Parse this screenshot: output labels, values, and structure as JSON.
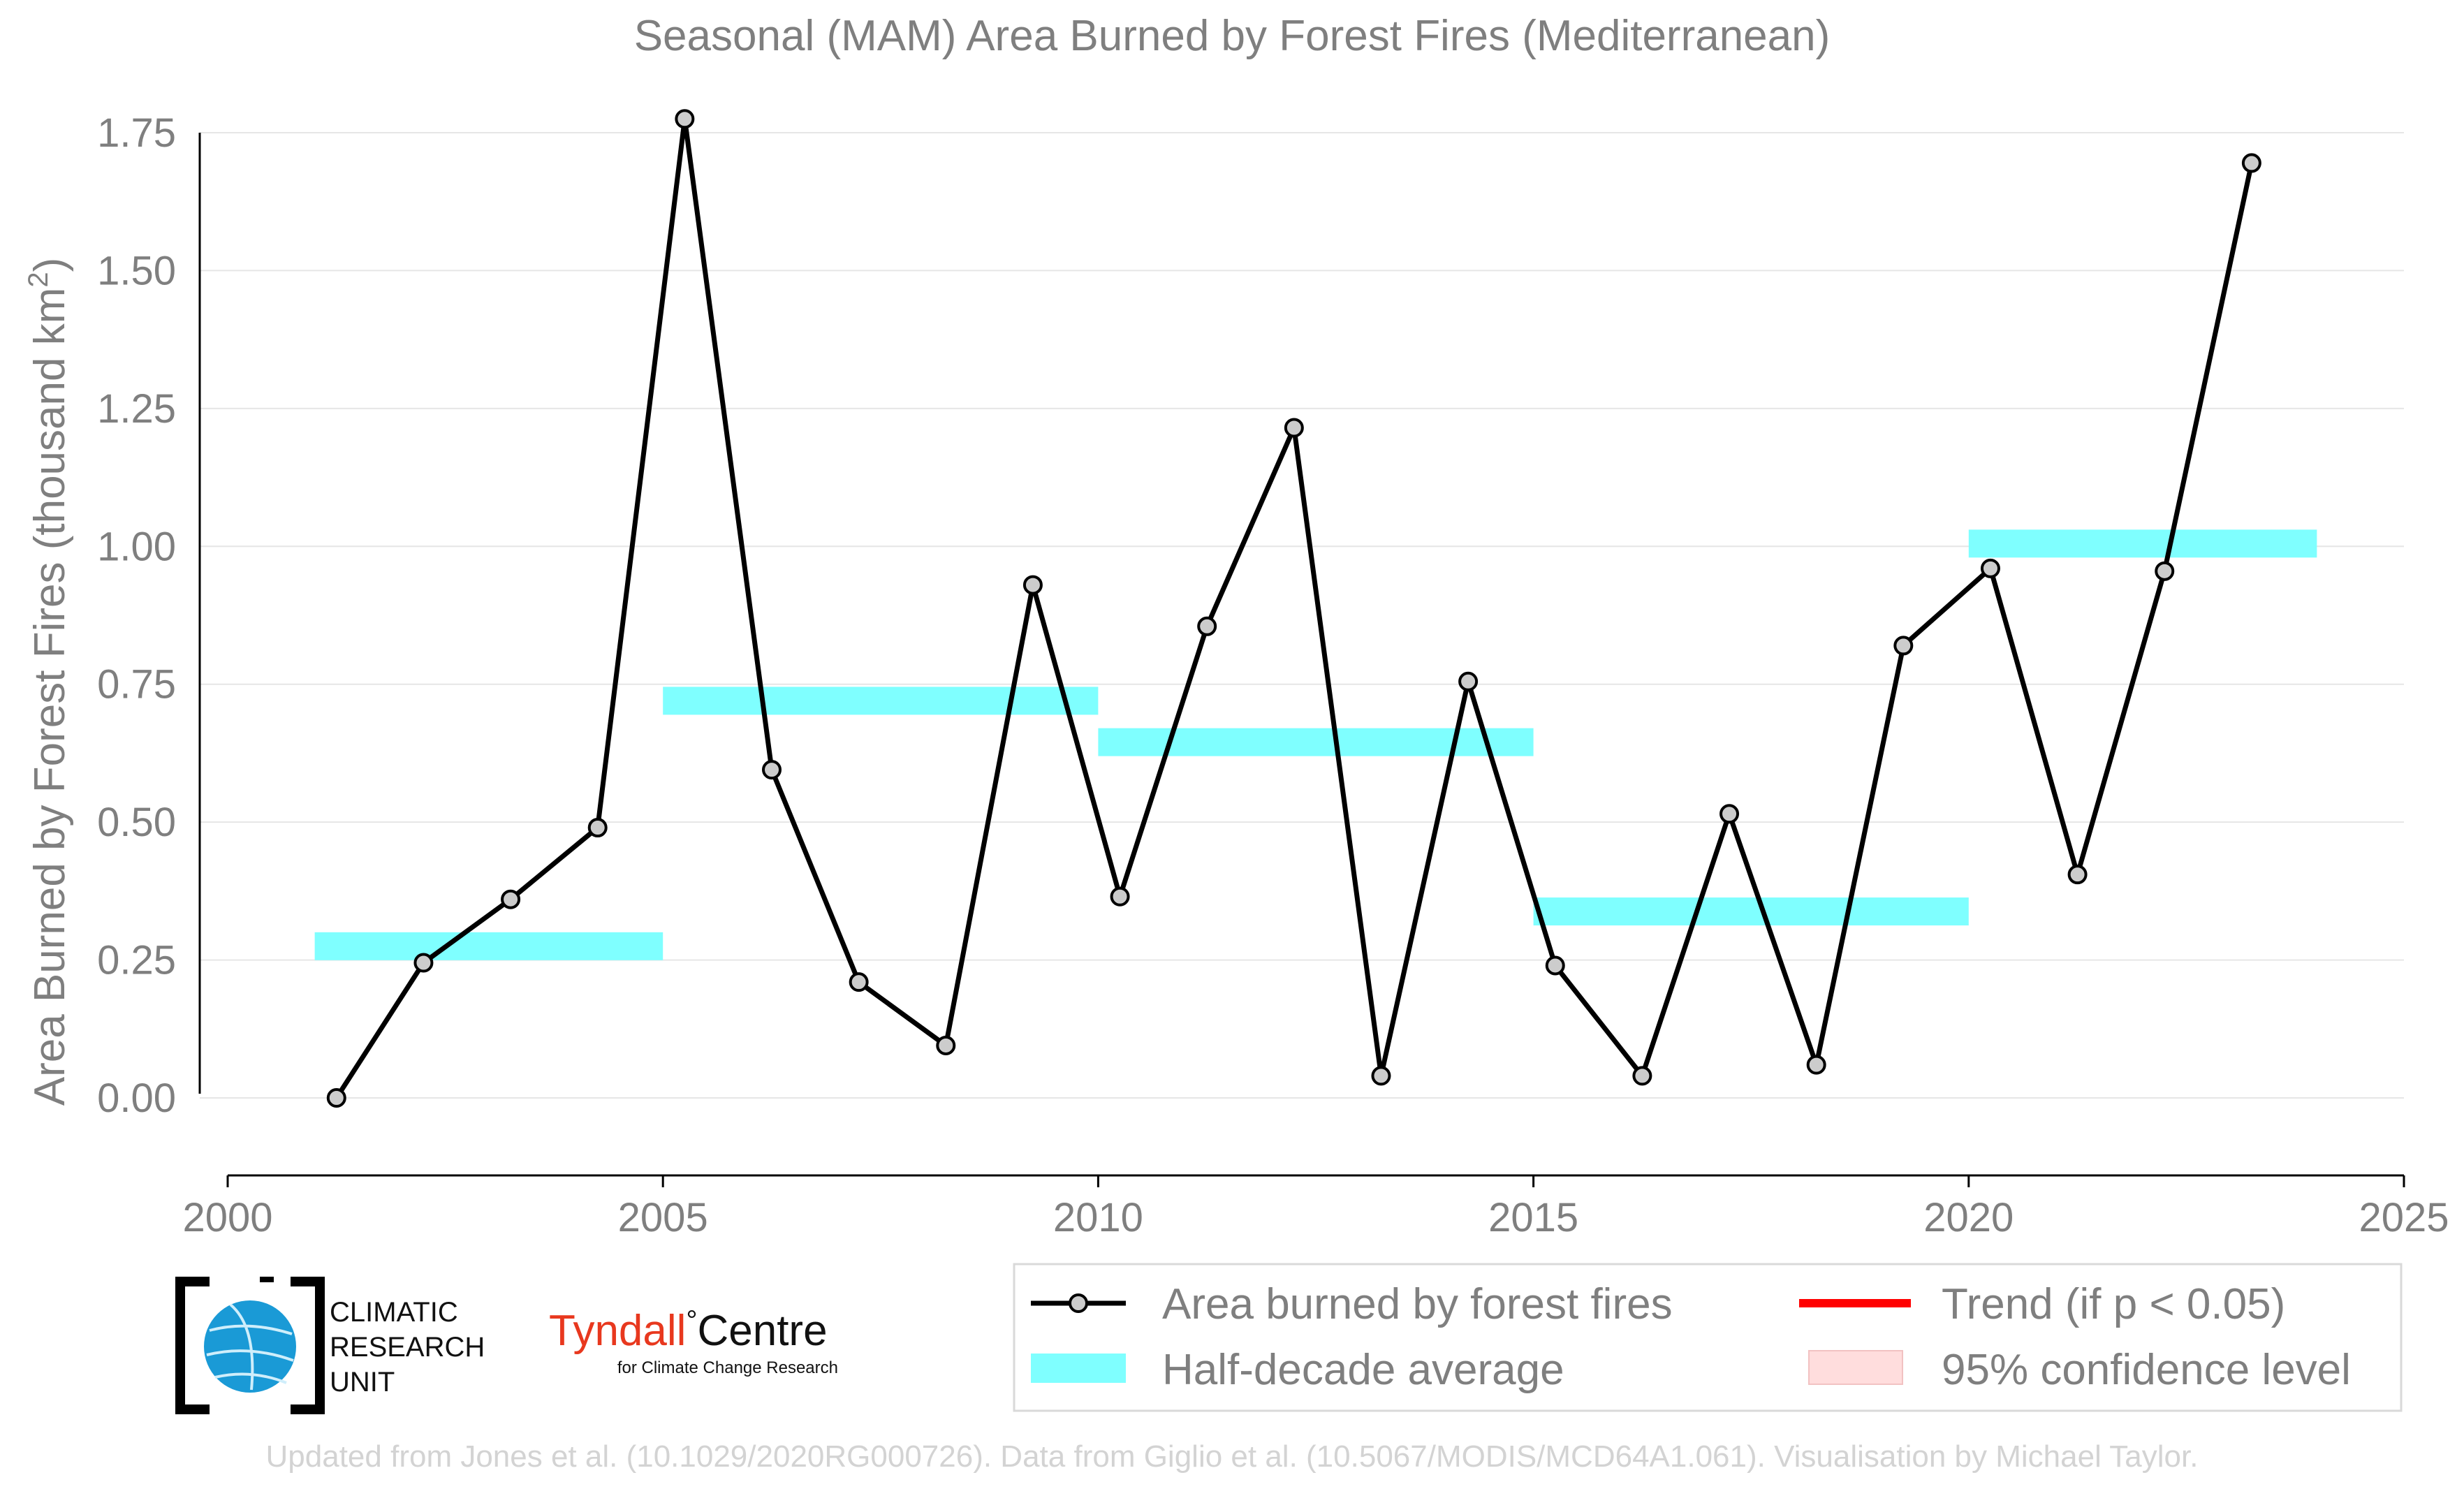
{
  "chart_data": {
    "type": "line",
    "title": "Seasonal (MAM) Area Burned by Forest Fires (Mediterranean)",
    "ylabel_main": "Area Burned by Forest Fires (thousand km",
    "ylabel_sup": "2",
    "ylabel_close": ")",
    "xlim": [
      2000,
      2025
    ],
    "ylim": [
      -0.14,
      1.8
    ],
    "y_ticks": [
      0.0,
      0.25,
      0.5,
      0.75,
      1.0,
      1.25,
      1.5,
      1.75
    ],
    "y_tick_labels": [
      "0.00",
      "0.25",
      "0.50",
      "0.75",
      "1.00",
      "1.25",
      "1.50",
      "1.75"
    ],
    "x_ticks": [
      2000,
      2005,
      2010,
      2015,
      2020,
      2025
    ],
    "x_tick_labels": [
      "2000",
      "2005",
      "2010",
      "2015",
      "2020",
      "2025"
    ],
    "grid": "horizontal",
    "series": [
      {
        "name": "Area burned by forest fires",
        "x": [
          2001.25,
          2002.25,
          2003.25,
          2004.25,
          2005.25,
          2006.25,
          2007.25,
          2008.25,
          2009.25,
          2010.25,
          2011.25,
          2012.25,
          2013.25,
          2014.25,
          2015.25,
          2016.25,
          2017.25,
          2018.25,
          2019.25,
          2020.25,
          2021.25,
          2022.25,
          2023.25
        ],
        "values": [
          0.0,
          0.245,
          0.36,
          0.49,
          1.775,
          0.595,
          0.21,
          0.095,
          0.93,
          0.365,
          0.855,
          1.215,
          0.04,
          0.755,
          0.24,
          0.04,
          0.515,
          0.06,
          0.82,
          0.96,
          0.405,
          0.955,
          1.695
        ],
        "color": "#000000",
        "marker_fill": "#cccccc"
      }
    ],
    "half_decade_averages": [
      {
        "x_start": 2001,
        "x_end": 2005,
        "value": 0.275
      },
      {
        "x_start": 2005,
        "x_end": 2010,
        "value": 0.72
      },
      {
        "x_start": 2010,
        "x_end": 2015,
        "value": 0.645
      },
      {
        "x_start": 2015,
        "x_end": 2020,
        "value": 0.338
      },
      {
        "x_start": 2020,
        "x_end": 2024,
        "value": 1.005
      }
    ],
    "half_decade_color": "#7fffff",
    "legend": {
      "placement": "bottom-right",
      "items": [
        {
          "label": "Area burned by forest fires",
          "kind": "line-marker",
          "color": "#000000"
        },
        {
          "label": "Trend (if p < 0.05)",
          "kind": "line",
          "color": "#ff0000"
        },
        {
          "label": "Half-decade average",
          "kind": "band",
          "color": "#7fffff"
        },
        {
          "label": "95% confidence level",
          "kind": "patch",
          "color": "#ffdddd"
        }
      ]
    }
  },
  "logos": {
    "cru_line1": "CLIMATIC",
    "cru_line2": "RESEARCH",
    "cru_line3": "UNIT",
    "tyndall_name": "Tyndall",
    "tyndall_degree": "°",
    "tyndall_centre": "Centre",
    "tyndall_sub": "for Climate Change Research",
    "tyndall_color": "#e8381e",
    "cru_globe_color": "#1a9ad6"
  },
  "credit": "Updated from Jones et al. (10.1029/2020RG000726). Data from Giglio et al. (10.5067/MODIS/MCD64A1.061). Visualisation by Michael Taylor."
}
